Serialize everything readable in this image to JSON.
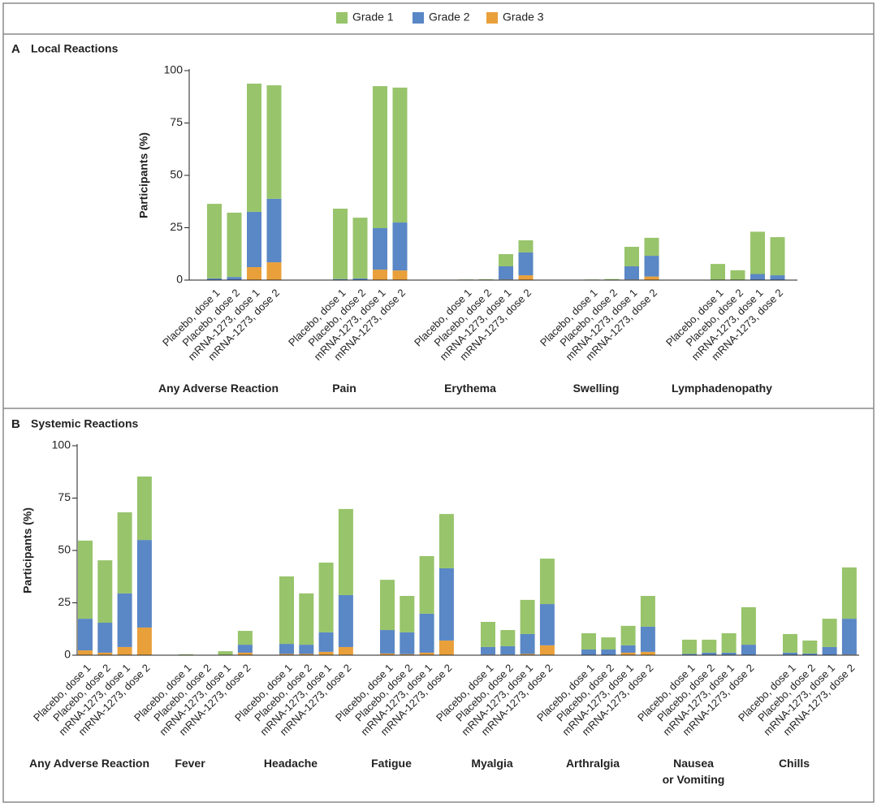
{
  "chart_data": [
    {
      "type": "bar",
      "stacked": true,
      "label": "A",
      "title": "Local Reactions",
      "y_label": "Participants (%)",
      "groups": [
        "Any Adverse Reaction",
        "Pain",
        "Erythema",
        "Swelling",
        "Lymphadenopathy"
      ],
      "categories": [
        "Placebo, dose 1",
        "Placebo, dose 2",
        "mRNA-1273, dose 1",
        "mRNA-1273, dose 2",
        "Placebo, dose 1",
        "Placebo, dose 2",
        "mRNA-1273, dose 1",
        "mRNA-1273, dose 2",
        "Placebo, dose 1",
        "Placebo, dose 2",
        "mRNA-1273, dose 1",
        "mRNA-1273, dose 2",
        "Placebo, dose 1",
        "Placebo, dose 2",
        "mRNA-1273, dose 1",
        "mRNA-1273, dose 2",
        "Placebo, dose 1",
        "Placebo, dose 2",
        "mRNA-1273, dose 1",
        "mRNA-1273, dose 2"
      ],
      "ylim": [
        0,
        100
      ],
      "yticks": [
        0,
        25,
        50,
        75,
        100
      ],
      "series": [
        {
          "name": "Grade 1",
          "color": "#98c46b",
          "values": [
            35.6,
            30.7,
            61.2,
            54.2,
            33.6,
            29.0,
            67.8,
            64.4,
            0.3,
            0.4,
            5.8,
            5.8,
            0.3,
            0.5,
            9.3,
            8.6,
            7.7,
            4.7,
            20.2,
            18.2
          ]
        },
        {
          "name": "Grade 2",
          "color": "#5a87c5",
          "values": [
            0.8,
            1.5,
            26.4,
            30.3,
            0.5,
            0.8,
            19.8,
            22.9,
            0,
            0,
            6.3,
            10.9,
            0,
            0,
            6.3,
            9.9,
            0,
            0,
            2.7,
            2.3
          ]
        },
        {
          "name": "Grade 3",
          "color": "#e9a03b",
          "values": [
            0,
            0,
            6.2,
            8.5,
            0,
            0,
            5.0,
            4.6,
            0,
            0,
            0.3,
            2.3,
            0,
            0,
            0.3,
            1.7,
            0,
            0,
            0.2,
            0
          ]
        }
      ]
    },
    {
      "type": "bar",
      "stacked": true,
      "label": "B",
      "title": "Systemic Reactions",
      "y_label": "Participants (%)",
      "groups": [
        "Any Adverse Reaction",
        "Fever",
        "Headache",
        "Fatigue",
        "Myalgia",
        "Arthralgia",
        "Nausea\nor Vomiting",
        "Chills"
      ],
      "categories": [
        "Placebo, dose 1",
        "Placebo, dose 2",
        "mRNA-1273, dose 1",
        "mRNA-1273, dose 2",
        "Placebo, dose 1",
        "Placebo, dose 2",
        "mRNA-1273, dose 1",
        "mRNA-1273, dose 2",
        "Placebo, dose 1",
        "Placebo, dose 2",
        "mRNA-1273, dose 1",
        "mRNA-1273, dose 2",
        "Placebo, dose 1",
        "Placebo, dose 2",
        "mRNA-1273, dose 1",
        "mRNA-1273, dose 2",
        "Placebo, dose 1",
        "Placebo, dose 2",
        "mRNA-1273, dose 1",
        "mRNA-1273, dose 2",
        "Placebo, dose 1",
        "Placebo, dose 2",
        "mRNA-1273, dose 1",
        "mRNA-1273, dose 2",
        "Placebo, dose 1",
        "Placebo, dose 2",
        "mRNA-1273, dose 1",
        "mRNA-1273, dose 2",
        "Placebo, dose 1",
        "Placebo, dose 2",
        "mRNA-1273, dose 1",
        "mRNA-1273, dose 2"
      ],
      "ylim": [
        0,
        100
      ],
      "yticks": [
        0,
        25,
        50,
        75,
        100
      ],
      "series": [
        {
          "color": "#98c46b",
          "values": [
            37.3,
            29.8,
            38.7,
            30.3,
            0.4,
            0.2,
            1.9,
            6.6,
            32.2,
            24.5,
            33.3,
            41.1,
            24.0,
            17.4,
            27.5,
            25.9,
            12.0,
            7.7,
            16.3,
            21.7,
            7.8,
            5.8,
            9.3,
            14.7,
            6.8,
            6.2,
            9.3,
            17.9,
            8.9,
            6.2,
            13.5,
            24.5
          ]
        },
        {
          "color": "#5a87c5",
          "values": [
            15.1,
            14.3,
            25.6,
            41.8,
            0,
            0,
            0,
            3.8,
            4.8,
            4.4,
            9.3,
            24.8,
            11.2,
            10.4,
            18.6,
            34.5,
            3.6,
            4.0,
            9.5,
            19.7,
            2.5,
            2.5,
            3.5,
            12.0,
            0.6,
            1.1,
            1.1,
            4.9,
            1.1,
            0.8,
            3.8,
            17.1
          ]
        },
        {
          "color": "#e9a03b",
          "values": [
            2.3,
            1.2,
            3.9,
            13.2,
            0,
            0,
            0,
            1.2,
            0.6,
            0.6,
            1.6,
            3.9,
            0.8,
            0.5,
            1.2,
            7.0,
            0.3,
            0.3,
            0.6,
            4.7,
            0.2,
            0.2,
            1.2,
            1.6,
            0,
            0.1,
            0.1,
            0.1,
            0.1,
            0,
            0.1,
            0.3
          ]
        }
      ]
    }
  ]
}
